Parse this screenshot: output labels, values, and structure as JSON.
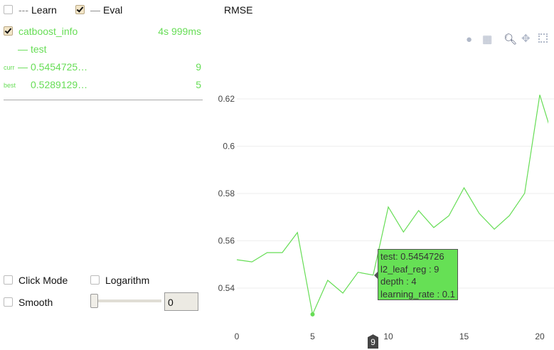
{
  "legend": {
    "learn_label": "Learn",
    "learn_checked": false,
    "eval_label": "Eval",
    "eval_checked": true
  },
  "run": {
    "name": "catboost_info",
    "checked": true,
    "time": "4s 999ms",
    "series": "test",
    "curr_label": "curr",
    "curr_value": "0.5454725…",
    "curr_iter": "9",
    "best_label": "best",
    "best_value": "0.5289129…",
    "best_iter": "5"
  },
  "controls": {
    "click_mode": "Click Mode",
    "logarithm": "Logarithm",
    "smooth": "Smooth",
    "smooth_value": "0"
  },
  "toolbar": {
    "icons": [
      "camera-icon",
      "save-icon",
      "zoom-icon",
      "pan-icon",
      "box-select-icon"
    ]
  },
  "colors": {
    "series": "#66dd55",
    "tooltip_bg": "#66e055"
  },
  "tooltip": {
    "line1": "test: 0.5454726",
    "line2": "l2_leaf_reg : 9",
    "line3": "depth : 4",
    "line4": "learning_rate : 0.1"
  },
  "hover_marker": "9",
  "chart_data": {
    "type": "line",
    "title": "RMSE",
    "x_ticks": [
      "0",
      "5",
      "10",
      "15",
      "20"
    ],
    "y_ticks": [
      "0.54",
      "0.56",
      "0.58",
      "0.6",
      "0.62"
    ],
    "grid": true,
    "series": [
      {
        "name": "test",
        "x": [
          0,
          1,
          2,
          3,
          4,
          5,
          6,
          7,
          8,
          9,
          10,
          11,
          12,
          13,
          14,
          15,
          16,
          17,
          18,
          19,
          20,
          21
        ],
        "y": [
          0.552,
          0.5511,
          0.555,
          0.555,
          0.5635,
          0.5289,
          0.5433,
          0.5379,
          0.5467,
          0.5455,
          0.5743,
          0.5637,
          0.5728,
          0.5656,
          0.5706,
          0.5824,
          0.5716,
          0.5649,
          0.5707,
          0.5801,
          0.6217,
          0.601
        ]
      }
    ],
    "best_point": {
      "x": 5,
      "y": 0.5289
    }
  }
}
